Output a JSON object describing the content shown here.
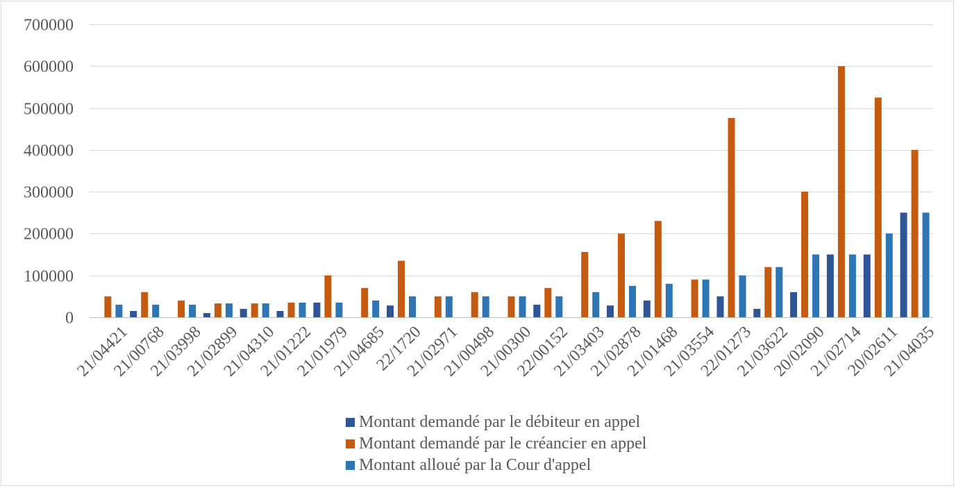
{
  "chart_data": {
    "type": "bar",
    "title": "",
    "xlabel": "",
    "ylabel": "",
    "ylim": [
      0,
      700000
    ],
    "yticks": [
      0,
      100000,
      200000,
      300000,
      400000,
      500000,
      600000,
      700000
    ],
    "grid": true,
    "legend_position": "bottom",
    "categories": [
      "21/04421",
      "21/00768",
      "21/03998",
      "21/02899",
      "21/04310",
      "21/01222",
      "21/01979",
      "21/04685",
      "22/1720",
      "21/02971",
      "21/00498",
      "21/00300",
      "22/00152",
      "21/03403",
      "21/02878",
      "21/01468",
      "21/03554",
      "22/01273",
      "21/03622",
      "20/02090",
      "21/02714",
      "20/02611",
      "21/04035"
    ],
    "series": [
      {
        "name": "Montant demandé par le débiteur en appel",
        "color": "#2f5597",
        "values": [
          0,
          15000,
          0,
          10000,
          20000,
          15000,
          35000,
          0,
          28000,
          0,
          0,
          0,
          30000,
          0,
          28000,
          40000,
          0,
          50000,
          20000,
          60000,
          150000,
          150000,
          250000
        ]
      },
      {
        "name": "Montant demandé par le créancier en appel",
        "color": "#c55a11",
        "values": [
          50000,
          60000,
          40000,
          33000,
          33000,
          35000,
          100000,
          70000,
          135000,
          50000,
          60000,
          50000,
          70000,
          156000,
          200000,
          230000,
          90000,
          476000,
          120000,
          300000,
          600000,
          525000,
          400000
        ]
      },
      {
        "name": "Montant alloué par la Cour d'appel",
        "color": "#2e75b6",
        "values": [
          30000,
          30000,
          30000,
          33000,
          33000,
          35000,
          35000,
          40000,
          50000,
          50000,
          50000,
          50000,
          50000,
          60000,
          75000,
          80000,
          90000,
          100000,
          120000,
          150000,
          150000,
          200000,
          250000
        ]
      }
    ]
  }
}
